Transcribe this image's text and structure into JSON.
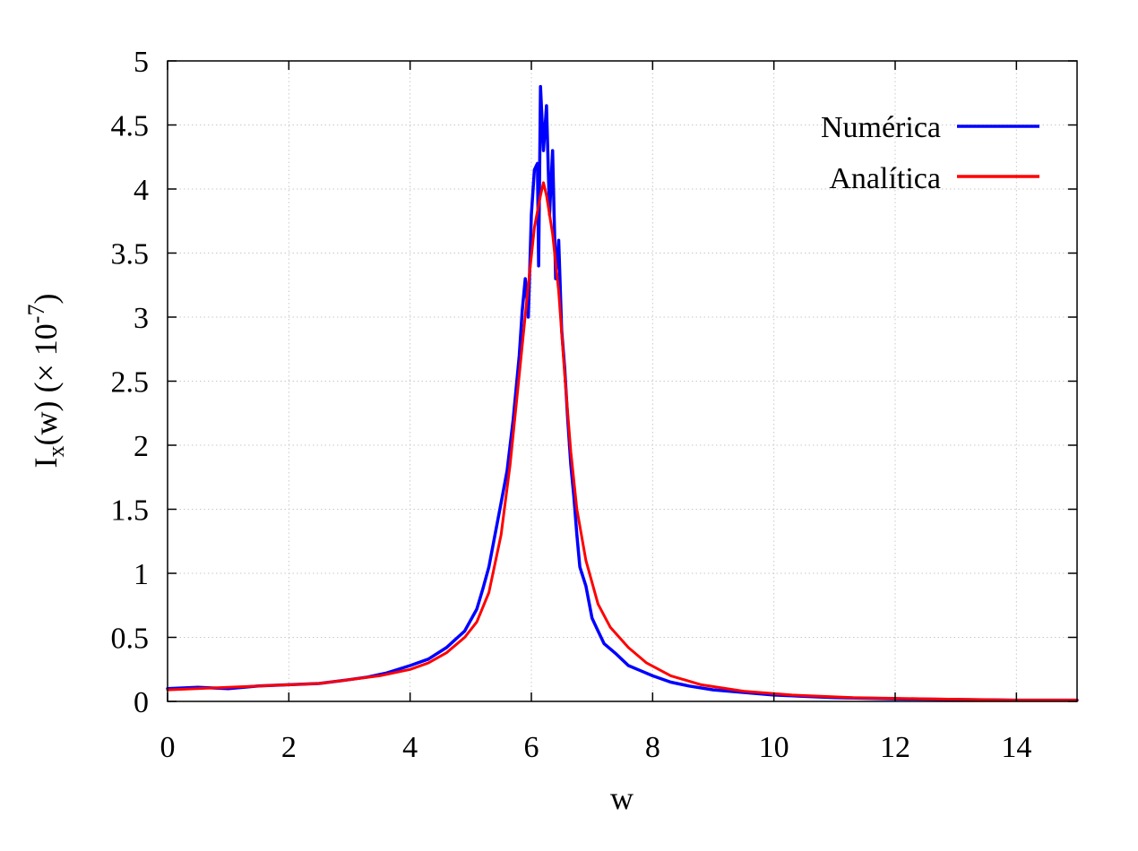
{
  "chart_data": {
    "type": "line",
    "xlabel": "w",
    "ylabel": {
      "base": "I",
      "sub": "x",
      "mid": "(w) (× 10",
      "sup": "-7",
      "end": ")"
    },
    "xlim": [
      0,
      15
    ],
    "ylim": [
      0,
      5
    ],
    "xticks": [
      0,
      2,
      4,
      6,
      8,
      10,
      12,
      14
    ],
    "yticks": [
      0,
      0.5,
      1,
      1.5,
      2,
      2.5,
      3,
      3.5,
      4,
      4.5,
      5
    ],
    "ytick_labels": [
      "0",
      "0.5",
      "1",
      "1.5",
      "2",
      "2.5",
      "3",
      "3.5",
      "4",
      "4.5",
      "5"
    ],
    "grid": true,
    "legend_position": "top-right",
    "series": [
      {
        "name": "Numérica",
        "color": "#0000ff",
        "x": [
          0,
          0.5,
          1,
          1.5,
          2,
          2.5,
          3,
          3.3,
          3.6,
          4,
          4.3,
          4.6,
          4.9,
          5.1,
          5.2,
          5.3,
          5.4,
          5.5,
          5.6,
          5.7,
          5.8,
          5.85,
          5.9,
          5.95,
          6,
          6.05,
          6.1,
          6.12,
          6.15,
          6.2,
          6.25,
          6.3,
          6.35,
          6.4,
          6.45,
          6.5,
          6.55,
          6.6,
          6.65,
          6.7,
          6.75,
          6.8,
          6.9,
          7,
          7.1,
          7.2,
          7.4,
          7.6,
          7.8,
          8,
          8.3,
          8.6,
          9,
          9.5,
          10,
          11,
          12,
          13,
          14,
          15
        ],
        "y": [
          0.1,
          0.11,
          0.1,
          0.12,
          0.13,
          0.14,
          0.17,
          0.19,
          0.22,
          0.28,
          0.33,
          0.42,
          0.55,
          0.72,
          0.88,
          1.05,
          1.3,
          1.55,
          1.8,
          2.2,
          2.7,
          3.05,
          3.3,
          3.0,
          3.8,
          4.15,
          4.2,
          3.4,
          4.8,
          4.3,
          4.65,
          3.8,
          4.3,
          3.3,
          3.6,
          2.9,
          2.6,
          2.2,
          1.85,
          1.6,
          1.3,
          1.05,
          0.9,
          0.65,
          0.55,
          0.45,
          0.37,
          0.28,
          0.24,
          0.2,
          0.15,
          0.12,
          0.09,
          0.07,
          0.05,
          0.03,
          0.02,
          0.015,
          0.01,
          0.01
        ]
      },
      {
        "name": "Analítica",
        "color": "#ff0000",
        "x": [
          0,
          1,
          2,
          2.5,
          3,
          3.5,
          4,
          4.3,
          4.6,
          4.9,
          5.1,
          5.3,
          5.5,
          5.65,
          5.8,
          5.95,
          6.05,
          6.15,
          6.2,
          6.25,
          6.35,
          6.45,
          6.55,
          6.65,
          6.75,
          6.9,
          7.1,
          7.3,
          7.6,
          7.9,
          8.3,
          8.8,
          9.5,
          10.3,
          11.3,
          12.5,
          14,
          15
        ],
        "y": [
          0.09,
          0.11,
          0.13,
          0.14,
          0.17,
          0.2,
          0.25,
          0.3,
          0.38,
          0.5,
          0.62,
          0.85,
          1.3,
          1.85,
          2.55,
          3.25,
          3.7,
          3.95,
          4.05,
          3.95,
          3.65,
          3.2,
          2.55,
          1.95,
          1.5,
          1.1,
          0.76,
          0.58,
          0.42,
          0.3,
          0.2,
          0.13,
          0.08,
          0.05,
          0.03,
          0.02,
          0.01,
          0.01
        ]
      }
    ]
  }
}
